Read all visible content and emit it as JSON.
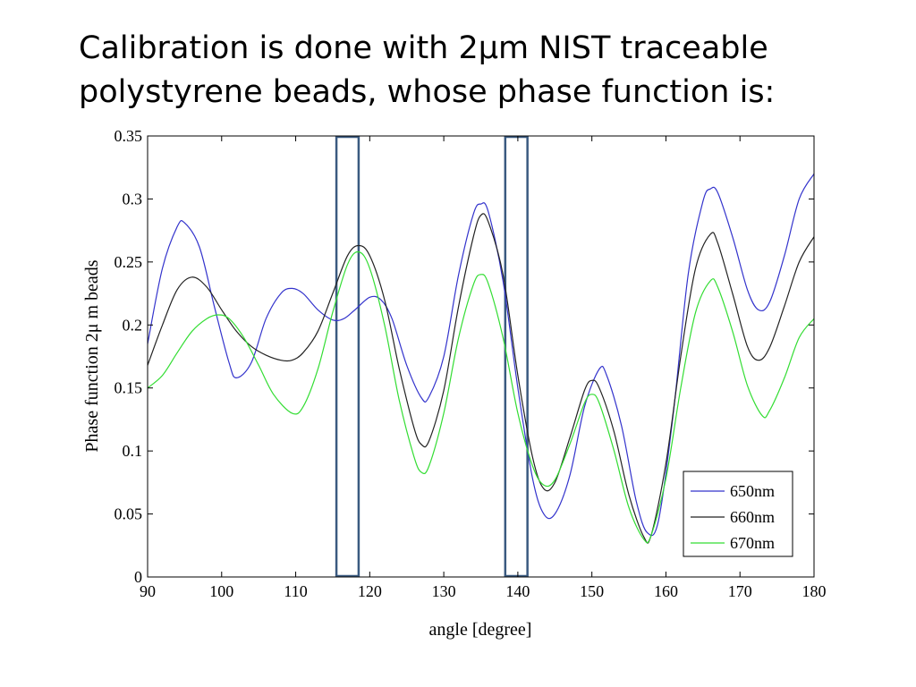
{
  "slide": {
    "title_line1": "Calibration is done with 2μm NIST traceable",
    "title_line2": "polystyrene beads, whose phase function is:"
  },
  "chart_data": {
    "type": "line",
    "xlabel": "angle [degree]",
    "ylabel": "Phase function 2μ m beads",
    "xlim": [
      90,
      180
    ],
    "ylim": [
      0,
      0.35
    ],
    "xticks": [
      90,
      100,
      110,
      120,
      130,
      140,
      150,
      160,
      170,
      180
    ],
    "yticks": [
      "0",
      "0.05",
      "0.1",
      "0.15",
      "0.2",
      "0.25",
      "0.3",
      "0.35"
    ],
    "grid": false,
    "legend_position": "bottom-right",
    "highlight_ranges": [
      [
        115.5,
        118.5
      ],
      [
        138.3,
        141.3
      ]
    ],
    "series": [
      {
        "name": "650nm",
        "color": "#3333cc",
        "points": [
          [
            90,
            0.185
          ],
          [
            92,
            0.245
          ],
          [
            94,
            0.278
          ],
          [
            95,
            0.281
          ],
          [
            97,
            0.262
          ],
          [
            99,
            0.215
          ],
          [
            101,
            0.17
          ],
          [
            102,
            0.158
          ],
          [
            104,
            0.17
          ],
          [
            106,
            0.205
          ],
          [
            108,
            0.225
          ],
          [
            109.5,
            0.229
          ],
          [
            111,
            0.225
          ],
          [
            113,
            0.212
          ],
          [
            115,
            0.204
          ],
          [
            116.5,
            0.205
          ],
          [
            118,
            0.212
          ],
          [
            120,
            0.222
          ],
          [
            121.5,
            0.22
          ],
          [
            123,
            0.205
          ],
          [
            125,
            0.168
          ],
          [
            127,
            0.142
          ],
          [
            128,
            0.143
          ],
          [
            130,
            0.175
          ],
          [
            132,
            0.24
          ],
          [
            134,
            0.288
          ],
          [
            135,
            0.296
          ],
          [
            136,
            0.29
          ],
          [
            138,
            0.235
          ],
          [
            140,
            0.15
          ],
          [
            142,
            0.078
          ],
          [
            143.5,
            0.05
          ],
          [
            145,
            0.05
          ],
          [
            147,
            0.08
          ],
          [
            149,
            0.135
          ],
          [
            151,
            0.165
          ],
          [
            152,
            0.16
          ],
          [
            154,
            0.12
          ],
          [
            156,
            0.06
          ],
          [
            157.5,
            0.035
          ],
          [
            159,
            0.045
          ],
          [
            161,
            0.13
          ],
          [
            163,
            0.24
          ],
          [
            165,
            0.298
          ],
          [
            166,
            0.308
          ],
          [
            167,
            0.305
          ],
          [
            169,
            0.27
          ],
          [
            171,
            0.228
          ],
          [
            172.5,
            0.212
          ],
          [
            174,
            0.218
          ],
          [
            176,
            0.255
          ],
          [
            178,
            0.3
          ],
          [
            180,
            0.32
          ]
        ]
      },
      {
        "name": "660nm",
        "color": "#222222",
        "points": [
          [
            90,
            0.168
          ],
          [
            92,
            0.2
          ],
          [
            94,
            0.228
          ],
          [
            96,
            0.238
          ],
          [
            98,
            0.23
          ],
          [
            100,
            0.212
          ],
          [
            102,
            0.195
          ],
          [
            104,
            0.183
          ],
          [
            106,
            0.176
          ],
          [
            108,
            0.172
          ],
          [
            109.5,
            0.172
          ],
          [
            111,
            0.178
          ],
          [
            113,
            0.195
          ],
          [
            115,
            0.225
          ],
          [
            117,
            0.255
          ],
          [
            118.5,
            0.263
          ],
          [
            120,
            0.255
          ],
          [
            122,
            0.22
          ],
          [
            124,
            0.165
          ],
          [
            126,
            0.118
          ],
          [
            127,
            0.105
          ],
          [
            128,
            0.108
          ],
          [
            130,
            0.148
          ],
          [
            132,
            0.215
          ],
          [
            134,
            0.27
          ],
          [
            135,
            0.287
          ],
          [
            136,
            0.282
          ],
          [
            138,
            0.24
          ],
          [
            140,
            0.16
          ],
          [
            142,
            0.095
          ],
          [
            143.5,
            0.07
          ],
          [
            145,
            0.075
          ],
          [
            147,
            0.11
          ],
          [
            149,
            0.148
          ],
          [
            150,
            0.156
          ],
          [
            151,
            0.15
          ],
          [
            153,
            0.115
          ],
          [
            155,
            0.065
          ],
          [
            157,
            0.032
          ],
          [
            158,
            0.033
          ],
          [
            160,
            0.09
          ],
          [
            162,
            0.175
          ],
          [
            164,
            0.245
          ],
          [
            166,
            0.272
          ],
          [
            167,
            0.265
          ],
          [
            169,
            0.225
          ],
          [
            171,
            0.183
          ],
          [
            172.5,
            0.172
          ],
          [
            174,
            0.182
          ],
          [
            176,
            0.215
          ],
          [
            178,
            0.25
          ],
          [
            180,
            0.27
          ]
        ]
      },
      {
        "name": "670nm",
        "color": "#33dd33",
        "points": [
          [
            90,
            0.15
          ],
          [
            92,
            0.16
          ],
          [
            94,
            0.178
          ],
          [
            96,
            0.195
          ],
          [
            98,
            0.205
          ],
          [
            99.5,
            0.208
          ],
          [
            101,
            0.205
          ],
          [
            103,
            0.19
          ],
          [
            105,
            0.168
          ],
          [
            107,
            0.145
          ],
          [
            109.5,
            0.13
          ],
          [
            111,
            0.135
          ],
          [
            113,
            0.165
          ],
          [
            115,
            0.21
          ],
          [
            117,
            0.248
          ],
          [
            118.5,
            0.258
          ],
          [
            120,
            0.245
          ],
          [
            122,
            0.2
          ],
          [
            124,
            0.14
          ],
          [
            126,
            0.095
          ],
          [
            127,
            0.083
          ],
          [
            128,
            0.088
          ],
          [
            130,
            0.13
          ],
          [
            132,
            0.19
          ],
          [
            134,
            0.232
          ],
          [
            135,
            0.24
          ],
          [
            136,
            0.233
          ],
          [
            138,
            0.19
          ],
          [
            140,
            0.13
          ],
          [
            142,
            0.088
          ],
          [
            143.5,
            0.073
          ],
          [
            145,
            0.077
          ],
          [
            147,
            0.105
          ],
          [
            149,
            0.138
          ],
          [
            150,
            0.145
          ],
          [
            151,
            0.138
          ],
          [
            153,
            0.1
          ],
          [
            155,
            0.055
          ],
          [
            157,
            0.03
          ],
          [
            158,
            0.033
          ],
          [
            160,
            0.078
          ],
          [
            162,
            0.15
          ],
          [
            164,
            0.21
          ],
          [
            166,
            0.235
          ],
          [
            167,
            0.23
          ],
          [
            169,
            0.195
          ],
          [
            171,
            0.152
          ],
          [
            173,
            0.128
          ],
          [
            174,
            0.132
          ],
          [
            176,
            0.158
          ],
          [
            178,
            0.19
          ],
          [
            180,
            0.205
          ]
        ]
      }
    ]
  }
}
